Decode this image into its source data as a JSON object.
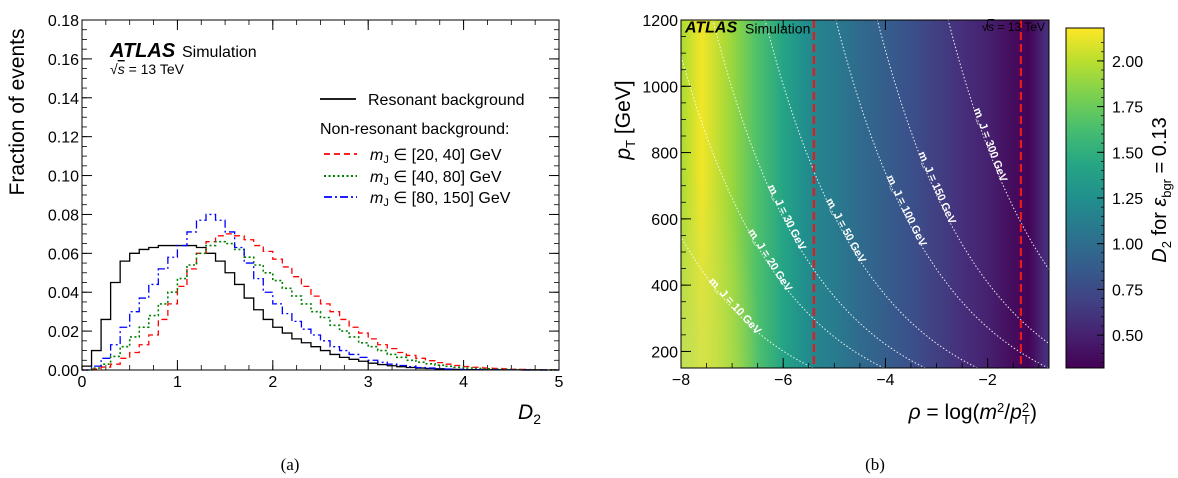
{
  "panels": {
    "a": {
      "caption": "(a)",
      "experiment": "ATLAS",
      "simulation_label": "Simulation",
      "energy_label_prefix": "√s",
      "energy_label_suffix": "= 13 TeV",
      "xlabel": "D₂",
      "ylabel": "Fraction of events",
      "legend": {
        "resonant": "Resonant background",
        "nonresonant_header": "Non-resonant background:",
        "entries": [
          "m_J ∈ [20, 40] GeV",
          "m_J ∈ [40, 80] GeV",
          "m_J ∈ [80, 150] GeV"
        ]
      }
    },
    "b": {
      "caption": "(b)",
      "experiment": "ATLAS",
      "simulation_label": "Simulation",
      "energy_label": "√s = 13 TeV",
      "xlabel": "ρ = log(m²/p_T²)",
      "ylabel": "p_T [GeV]",
      "colorbar_label": "D₂ for ε_bgr = 0.13"
    }
  },
  "chart_data": [
    {
      "type": "line",
      "step": true,
      "xlim": [
        0,
        5
      ],
      "ylim": [
        0,
        0.18
      ],
      "xticks": [
        0,
        1,
        2,
        3,
        4,
        5
      ],
      "yticks": [
        0.0,
        0.02,
        0.04,
        0.06,
        0.08,
        0.1,
        0.12,
        0.14,
        0.16,
        0.18
      ],
      "bin_width": 0.1,
      "x_bin_edges_start": 0,
      "series": [
        {
          "name": "Resonant background",
          "color": "#000000",
          "dash": "solid",
          "values": [
            0.002,
            0.01,
            0.026,
            0.045,
            0.056,
            0.06,
            0.062,
            0.063,
            0.064,
            0.064,
            0.064,
            0.064,
            0.063,
            0.06,
            0.056,
            0.05,
            0.044,
            0.037,
            0.031,
            0.026,
            0.022,
            0.019,
            0.016,
            0.014,
            0.012,
            0.01,
            0.008,
            0.0065,
            0.0055,
            0.0045,
            0.0035,
            0.0028,
            0.0022,
            0.0017,
            0.0013,
            0.001,
            0.0008,
            0.0006,
            0.0004,
            0.0003,
            0.0002,
            0.00015,
            0.0001,
            0.0001,
            5e-05,
            5e-05,
            3e-05,
            2e-05,
            1e-05,
            1e-05
          ]
        },
        {
          "name": "m_J ∈ [20, 40] GeV",
          "color": "#ff0000",
          "dash": "dashed",
          "values": [
            0.0,
            0.0005,
            0.0015,
            0.003,
            0.006,
            0.009,
            0.013,
            0.018,
            0.026,
            0.034,
            0.043,
            0.052,
            0.06,
            0.066,
            0.069,
            0.07,
            0.069,
            0.067,
            0.064,
            0.061,
            0.057,
            0.053,
            0.048,
            0.043,
            0.038,
            0.034,
            0.03,
            0.026,
            0.022,
            0.019,
            0.016,
            0.013,
            0.011,
            0.009,
            0.0075,
            0.006,
            0.0048,
            0.0038,
            0.003,
            0.0023,
            0.0018,
            0.0014,
            0.001,
            0.0008,
            0.0006,
            0.0004,
            0.0003,
            0.0002,
            0.0001,
            0.0001
          ]
        },
        {
          "name": "m_J ∈ [40, 80] GeV",
          "color": "#008000",
          "dash": "dotted",
          "values": [
            0.0,
            0.001,
            0.003,
            0.007,
            0.012,
            0.017,
            0.022,
            0.028,
            0.034,
            0.04,
            0.047,
            0.054,
            0.06,
            0.064,
            0.066,
            0.065,
            0.062,
            0.058,
            0.054,
            0.05,
            0.046,
            0.042,
            0.038,
            0.034,
            0.03,
            0.027,
            0.023,
            0.02,
            0.017,
            0.014,
            0.012,
            0.01,
            0.008,
            0.0065,
            0.005,
            0.004,
            0.0032,
            0.0025,
            0.0019,
            0.0014,
            0.001,
            0.0008,
            0.0006,
            0.0004,
            0.0003,
            0.0002,
            0.0001,
            0.0001,
            5e-05,
            5e-05
          ]
        },
        {
          "name": "m_J ∈ [80, 150] GeV",
          "color": "#0000ff",
          "dash": "dashdot",
          "values": [
            0.0,
            0.002,
            0.006,
            0.013,
            0.022,
            0.03,
            0.037,
            0.044,
            0.052,
            0.058,
            0.064,
            0.071,
            0.077,
            0.08,
            0.077,
            0.071,
            0.063,
            0.055,
            0.047,
            0.04,
            0.034,
            0.029,
            0.025,
            0.021,
            0.018,
            0.015,
            0.012,
            0.01,
            0.008,
            0.0065,
            0.005,
            0.004,
            0.003,
            0.0023,
            0.0017,
            0.0013,
            0.001,
            0.0007,
            0.0005,
            0.0003,
            0.0002,
            0.00015,
            0.0001,
            0.0001,
            5e-05,
            5e-05,
            3e-05,
            2e-05,
            1e-05,
            1e-05
          ]
        }
      ]
    },
    {
      "type": "heatmap",
      "xlim": [
        -8,
        -0.8
      ],
      "ylim": [
        150,
        1200
      ],
      "xticks": [
        -8,
        -6,
        -4,
        -2
      ],
      "yticks": [
        200,
        400,
        600,
        800,
        1000,
        1200
      ],
      "colorbar": {
        "range": [
          0.32,
          2.18
        ],
        "ticks": [
          0.5,
          0.75,
          1.0,
          1.25,
          1.5,
          1.75,
          2.0
        ],
        "colormap": "viridis"
      },
      "x_profile": [
        [
          -8.0,
          1.95
        ],
        [
          -7.6,
          2.15
        ],
        [
          -7.0,
          1.9
        ],
        [
          -6.5,
          1.65
        ],
        [
          -6.0,
          1.42
        ],
        [
          -5.6,
          1.25
        ],
        [
          -5.4,
          1.18
        ],
        [
          -5.0,
          1.1
        ],
        [
          -4.5,
          0.98
        ],
        [
          -4.0,
          0.88
        ],
        [
          -3.5,
          0.78
        ],
        [
          -3.0,
          0.68
        ],
        [
          -2.5,
          0.58
        ],
        [
          -2.0,
          0.5
        ],
        [
          -1.5,
          0.38
        ],
        [
          -1.2,
          0.33
        ],
        [
          -0.9,
          0.55
        ],
        [
          -0.8,
          0.6
        ]
      ],
      "vertical_lines": [
        {
          "x": -5.4,
          "color": "#e8181e",
          "style": "dashed"
        },
        {
          "x": -1.35,
          "color": "#e8181e",
          "style": "dashed"
        }
      ],
      "mass_contours": [
        {
          "mJ": 10,
          "label": "m_J = 10 GeV"
        },
        {
          "mJ": 20,
          "label": "m_J = 20 GeV"
        },
        {
          "mJ": 30,
          "label": "m_J = 30 GeV"
        },
        {
          "mJ": 50,
          "label": "m_J = 50 GeV"
        },
        {
          "mJ": 100,
          "label": "m_J = 100 GeV"
        },
        {
          "mJ": 150,
          "label": "m_J = 150 GeV"
        },
        {
          "mJ": 300,
          "label": "m_J = 300 GeV"
        }
      ]
    }
  ]
}
